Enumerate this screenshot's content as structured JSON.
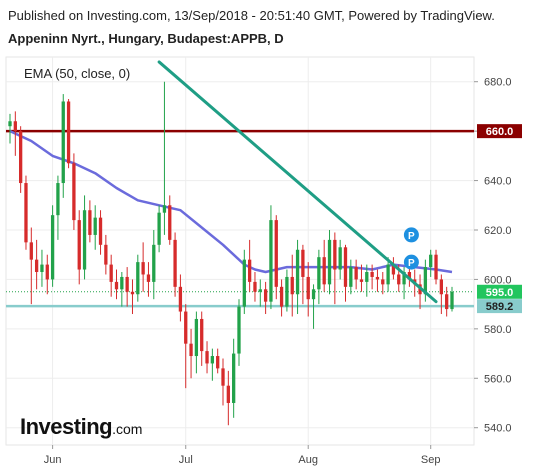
{
  "header": {
    "published": "Published on Investing.com, 13/Sep/2018 - 20:51:40 GMT, Powered by TradingView.",
    "instrument": "Appeninn Nyrt., Hungary, Budapest:APPB, D"
  },
  "indicator": {
    "label": "EMA (50, close, 0)",
    "color": "#6b6bdc"
  },
  "logo": {
    "main": "Investing",
    "suffix": ".com"
  },
  "chart_data": {
    "type": "candlestick",
    "y_ticks": [
      "680.0",
      "660.0",
      "640.0",
      "620.0",
      "600.0",
      "580.0",
      "560.0",
      "540.0"
    ],
    "y_tick_values": [
      680,
      660,
      640,
      620,
      600,
      580,
      560,
      540
    ],
    "x_labels": [
      "Jun",
      "Jul",
      "Aug",
      "Sep"
    ],
    "x_label_index": [
      8,
      33,
      56,
      79
    ],
    "ylim": [
      533,
      690
    ],
    "grid": true,
    "colors": {
      "up": "#22a24a",
      "down": "#d62b2b",
      "ema": "#6b6bdc",
      "trendline": "#1f9e85"
    },
    "candles": [
      [
        662,
        667,
        655,
        664
      ],
      [
        664,
        668,
        650,
        660
      ],
      [
        660,
        662,
        635,
        639
      ],
      [
        639,
        642,
        612,
        615
      ],
      [
        615,
        621,
        590,
        608
      ],
      [
        608,
        616,
        596,
        603
      ],
      [
        603,
        612,
        597,
        606
      ],
      [
        606,
        610,
        594,
        600
      ],
      [
        600,
        630,
        597,
        626
      ],
      [
        626,
        642,
        616,
        639
      ],
      [
        639,
        675,
        633,
        672
      ],
      [
        672,
        673,
        645,
        647
      ],
      [
        647,
        651,
        620,
        624
      ],
      [
        624,
        628,
        598,
        604
      ],
      [
        604,
        634,
        600,
        628
      ],
      [
        628,
        632,
        615,
        618
      ],
      [
        618,
        630,
        612,
        625
      ],
      [
        625,
        628,
        610,
        614
      ],
      [
        614,
        618,
        602,
        606
      ],
      [
        606,
        610,
        593,
        599
      ],
      [
        599,
        604,
        592,
        596
      ],
      [
        596,
        603,
        589,
        601
      ],
      [
        601,
        605,
        589,
        595
      ],
      [
        595,
        600,
        586,
        594
      ],
      [
        594,
        610,
        591,
        607
      ],
      [
        607,
        615,
        595,
        602
      ],
      [
        602,
        607,
        593,
        599
      ],
      [
        599,
        620,
        592,
        614
      ],
      [
        614,
        630,
        611,
        627
      ],
      [
        627,
        680,
        618,
        630
      ],
      [
        630,
        634,
        614,
        616
      ],
      [
        616,
        619,
        593,
        597
      ],
      [
        597,
        602,
        583,
        587
      ],
      [
        587,
        590,
        556,
        574
      ],
      [
        574,
        580,
        560,
        569
      ],
      [
        569,
        587,
        562,
        584
      ],
      [
        584,
        587,
        565,
        571
      ],
      [
        571,
        575,
        562,
        566
      ],
      [
        566,
        572,
        559,
        569
      ],
      [
        569,
        572,
        562,
        564
      ],
      [
        564,
        568,
        549,
        557
      ],
      [
        557,
        563,
        541,
        550
      ],
      [
        550,
        576,
        544,
        570
      ],
      [
        570,
        592,
        565,
        589
      ],
      [
        589,
        612,
        586,
        608
      ],
      [
        608,
        616,
        595,
        599
      ],
      [
        599,
        603,
        591,
        595
      ],
      [
        595,
        600,
        589,
        596
      ],
      [
        596,
        599,
        586,
        591
      ],
      [
        591,
        630,
        588,
        624
      ],
      [
        624,
        626,
        592,
        597
      ],
      [
        597,
        600,
        585,
        589
      ],
      [
        589,
        604,
        587,
        601
      ],
      [
        601,
        610,
        585,
        594
      ],
      [
        594,
        616,
        586,
        612
      ],
      [
        612,
        614,
        590,
        601
      ],
      [
        601,
        607,
        585,
        592
      ],
      [
        592,
        598,
        580,
        596
      ],
      [
        596,
        612,
        590,
        609
      ],
      [
        609,
        616,
        595,
        598
      ],
      [
        598,
        620,
        594,
        616
      ],
      [
        616,
        619,
        590,
        604
      ],
      [
        604,
        616,
        600,
        613
      ],
      [
        613,
        614,
        591,
        597
      ],
      [
        597,
        608,
        594,
        605
      ],
      [
        605,
        608,
        596,
        600
      ],
      [
        600,
        606,
        595,
        599
      ],
      [
        599,
        606,
        593,
        603
      ],
      [
        603,
        606,
        596,
        601
      ],
      [
        601,
        604,
        595,
        600
      ],
      [
        600,
        603,
        594,
        598
      ],
      [
        598,
        609,
        595,
        606
      ],
      [
        606,
        609,
        600,
        602
      ],
      [
        602,
        606,
        595,
        598
      ],
      [
        598,
        605,
        592,
        603
      ],
      [
        603,
        606,
        597,
        600
      ],
      [
        600,
        604,
        593,
        598
      ],
      [
        598,
        602,
        588,
        594
      ],
      [
        594,
        608,
        591,
        605
      ],
      [
        605,
        612,
        601,
        610
      ],
      [
        610,
        612,
        598,
        600
      ],
      [
        600,
        602,
        586,
        594
      ],
      [
        594,
        597,
        585,
        588
      ],
      [
        588,
        597,
        587,
        595
      ]
    ],
    "ema": [
      [
        0,
        660
      ],
      [
        4,
        656
      ],
      [
        8,
        650
      ],
      [
        12,
        647
      ],
      [
        16,
        643
      ],
      [
        20,
        637
      ],
      [
        24,
        632
      ],
      [
        28,
        630
      ],
      [
        32,
        628
      ],
      [
        36,
        621
      ],
      [
        40,
        614
      ],
      [
        44,
        606
      ],
      [
        46,
        604
      ],
      [
        48,
        603
      ],
      [
        52,
        605
      ],
      [
        56,
        605
      ],
      [
        60,
        605
      ],
      [
        64,
        605
      ],
      [
        68,
        604
      ],
      [
        72,
        606
      ],
      [
        76,
        605
      ],
      [
        80,
        604
      ],
      [
        83,
        603
      ]
    ],
    "trendline": [
      [
        28,
        688
      ],
      [
        80,
        591
      ]
    ],
    "horizontal_lines": [
      {
        "value": 660.0,
        "label": "660.0",
        "color": "#8b0000",
        "style": "solid"
      },
      {
        "value": 595.0,
        "label": "595.0",
        "color": "#22a24a",
        "style": "dotted"
      },
      {
        "value": 589.2,
        "label": "589.2",
        "color": "#88cccc",
        "style": "solid"
      }
    ],
    "markers": [
      {
        "index": 75,
        "value": 618,
        "label": "P",
        "color": "#1e90e0"
      },
      {
        "index": 75,
        "value": 607,
        "label": "P",
        "color": "#1e90e0"
      }
    ]
  }
}
